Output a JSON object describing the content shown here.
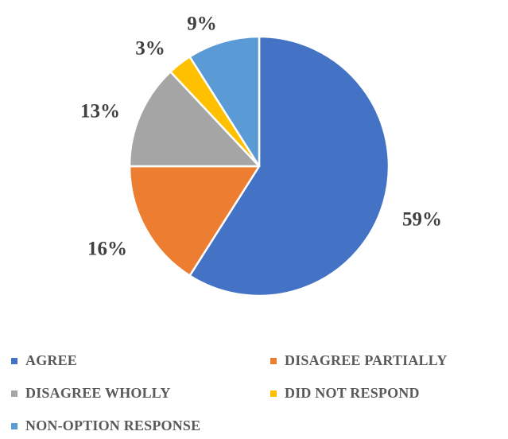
{
  "chart_data": {
    "type": "pie",
    "title": "",
    "slices": [
      {
        "name": "AGREE",
        "value": 59,
        "label": "59%",
        "color": "#4472C4"
      },
      {
        "name": "DISAGREE PARTIALLY",
        "value": 16,
        "label": "16%",
        "color": "#ED7D31"
      },
      {
        "name": "DISAGREE WHOLLY",
        "value": 13,
        "label": "13%",
        "color": "#A5A5A5"
      },
      {
        "name": "DID NOT RESPOND",
        "value": 3,
        "label": "3%",
        "color": "#FFC000"
      },
      {
        "name": "NON-OPTION RESPONSE",
        "value": 9,
        "label": "9%",
        "color": "#5B9BD5"
      }
    ],
    "start_angle_deg": 0,
    "direction": "clockwise",
    "legend_position": "bottom"
  }
}
